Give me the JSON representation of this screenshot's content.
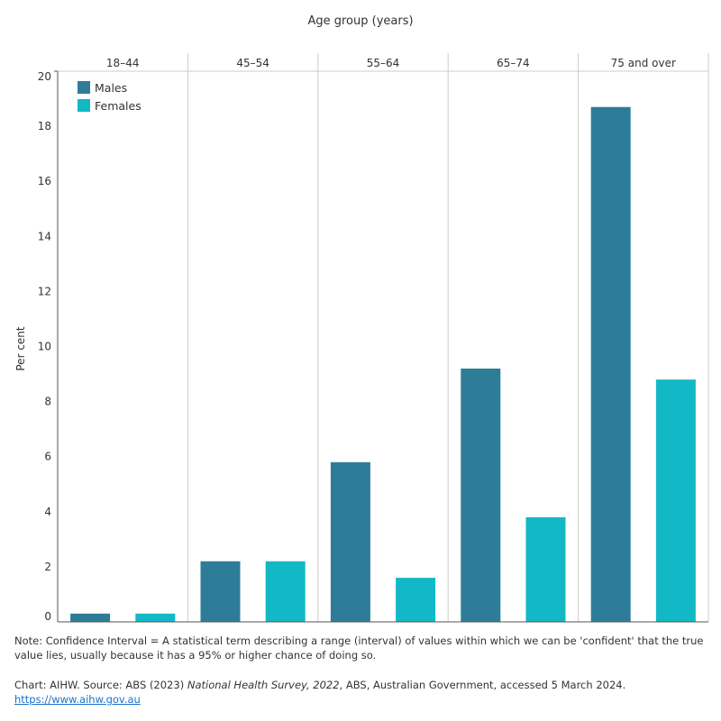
{
  "chart_data": {
    "type": "bar",
    "xlabel": "Age group (years)",
    "ylabel": "Per cent",
    "ylim": [
      0,
      20
    ],
    "yticks": [
      0,
      2,
      4,
      6,
      8,
      10,
      12,
      14,
      16,
      18,
      20
    ],
    "categories": [
      "18–44",
      "45–54",
      "55–64",
      "65–74",
      "75 and over"
    ],
    "series": [
      {
        "name": "Males",
        "color": "#2e7d98",
        "values": [
          0.3,
          2.2,
          5.8,
          9.2,
          18.7
        ]
      },
      {
        "name": "Females",
        "color": "#13b8c6",
        "values": [
          0.3,
          2.2,
          1.6,
          3.8,
          8.8
        ]
      }
    ],
    "legend": "top-left",
    "grid": false
  },
  "notes": {
    "note": "Note: Confidence Interval = A statistical term describing a range (interval) of values within which we can be 'confident' that the true value lies, usually because it has a 95% or higher chance of doing so.",
    "source_pre": "Chart: AIHW. Source: ABS (2023) ",
    "source_title": "National Health Survey, 2022",
    "source_post": ", ABS, Australian Government, accessed 5 March 2024.",
    "link": "https://www.aihw.gov.au"
  }
}
